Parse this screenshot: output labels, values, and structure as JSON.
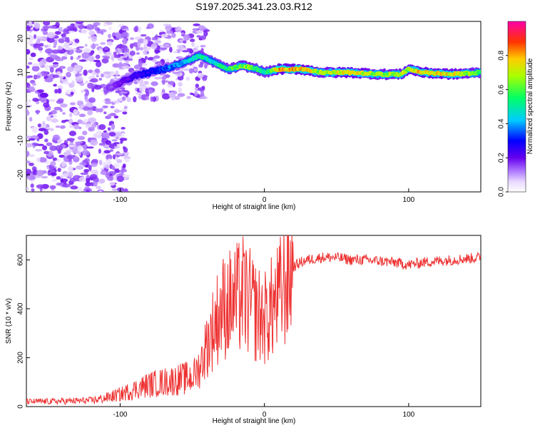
{
  "title": "S197.2025.341.23.03.R12",
  "chart_data": [
    {
      "type": "heatmap",
      "xlabel": "Height of straight line (km)",
      "ylabel": "Frequency (Hz)",
      "xlim": [
        -165,
        150
      ],
      "ylim": [
        -25,
        25
      ],
      "xticks": [
        "-100",
        "0",
        "100"
      ],
      "xtick_values": [
        -100,
        0,
        100
      ],
      "yticks": [
        "20",
        "10",
        "0",
        "-10",
        "-20"
      ],
      "ytick_values": [
        20,
        10,
        0,
        -10,
        -20
      ],
      "colorbar": {
        "label": "Normalized spectral amplitude",
        "range": [
          0,
          1
        ],
        "ticks": [
          "0.0",
          "0.2",
          "0.4",
          "0.6",
          "0.8"
        ],
        "tick_values": [
          0.0,
          0.2,
          0.4,
          0.6,
          0.8
        ]
      },
      "ridge": {
        "description_points_x": [
          -110,
          -90,
          -70,
          -55,
          -45,
          -35,
          -25,
          -15,
          -5,
          0,
          10,
          25,
          40,
          60,
          80,
          95,
          100,
          110,
          130,
          150
        ],
        "frequency_hz": [
          5,
          9,
          11,
          13,
          15,
          13,
          11,
          12,
          11,
          10,
          11,
          11,
          10,
          10,
          9.5,
          9.5,
          11,
          10,
          9.5,
          10
        ],
        "amplitude": [
          0.15,
          0.25,
          0.35,
          0.45,
          0.55,
          0.5,
          0.6,
          0.7,
          0.6,
          0.55,
          0.85,
          0.85,
          0.7,
          0.8,
          0.7,
          0.7,
          0.75,
          0.85,
          0.8,
          0.6
        ]
      }
    },
    {
      "type": "line",
      "xlabel": "Height of straight line (km)",
      "ylabel": "SNR (10 * v/v)",
      "xlim": [
        -165,
        150
      ],
      "ylim": [
        0,
        700
      ],
      "xticks": [
        "-100",
        "0",
        "100"
      ],
      "xtick_values": [
        -100,
        0,
        100
      ],
      "yticks": [
        "0",
        "200",
        "400",
        "600"
      ],
      "ytick_values": [
        0,
        200,
        400,
        600
      ],
      "color": "#ee3333",
      "x": [
        -165,
        -140,
        -120,
        -110,
        -100,
        -90,
        -80,
        -70,
        -60,
        -50,
        -45,
        -40,
        -35,
        -30,
        -25,
        -20,
        -15,
        -10,
        -5,
        0,
        5,
        10,
        15,
        20,
        25,
        30,
        40,
        50,
        60,
        70,
        80,
        90,
        100,
        110,
        120,
        130,
        140,
        150
      ],
      "y": [
        20,
        22,
        25,
        35,
        50,
        70,
        90,
        100,
        110,
        120,
        160,
        250,
        330,
        400,
        420,
        430,
        460,
        420,
        380,
        360,
        400,
        440,
        520,
        570,
        590,
        600,
        610,
        610,
        600,
        600,
        595,
        590,
        580,
        590,
        595,
        600,
        605,
        610
      ]
    }
  ]
}
